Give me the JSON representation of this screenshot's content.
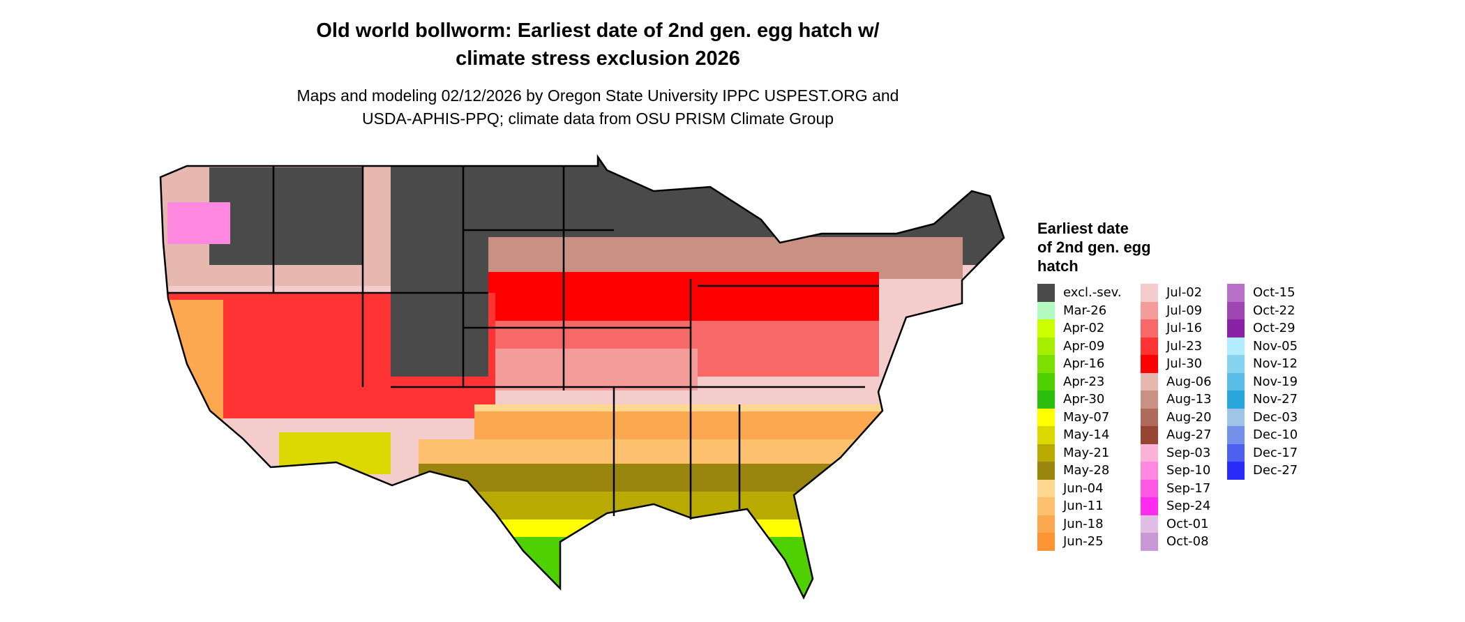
{
  "title_line1": "Old world bollworm: Earliest date of 2nd gen. egg hatch w/",
  "title_line2": "climate stress exclusion 2026",
  "subtitle_line1": "Maps and modeling 02/12/2026 by Oregon State University IPPC USPEST.ORG and",
  "subtitle_line2": "USDA-APHIS-PPQ; climate data from OSU PRISM Climate Group",
  "chart_data": {
    "type": "heatmap",
    "title": "Old world bollworm: Earliest date of 2nd gen. egg hatch w/ climate stress exclusion 2026",
    "region": "Contiguous United States",
    "legend_title": "Earliest date of 2nd gen. egg hatch",
    "legend_placement": "right",
    "legend": [
      {
        "label": "excl.-sev.",
        "color": "#4a4a4a"
      },
      {
        "label": "Mar-26",
        "color": "#b3fbc0"
      },
      {
        "label": "Apr-02",
        "color": "#ccff00"
      },
      {
        "label": "Apr-09",
        "color": "#a6ef00"
      },
      {
        "label": "Apr-16",
        "color": "#7ae000"
      },
      {
        "label": "Apr-23",
        "color": "#4fd000"
      },
      {
        "label": "Apr-30",
        "color": "#2dbf0e"
      },
      {
        "label": "May-07",
        "color": "#ffff00"
      },
      {
        "label": "May-14",
        "color": "#dcd800"
      },
      {
        "label": "May-21",
        "color": "#b8aa00"
      },
      {
        "label": "May-28",
        "color": "#9a850e"
      },
      {
        "label": "Jun-04",
        "color": "#fdd88e"
      },
      {
        "label": "Jun-11",
        "color": "#fdc06e"
      },
      {
        "label": "Jun-18",
        "color": "#fca851"
      },
      {
        "label": "Jun-25",
        "color": "#fc9433"
      },
      {
        "label": "Jul-02",
        "color": "#f4cccc"
      },
      {
        "label": "Jul-09",
        "color": "#f49c9a"
      },
      {
        "label": "Jul-16",
        "color": "#f76868"
      },
      {
        "label": "Jul-23",
        "color": "#fe3434"
      },
      {
        "label": "Jul-30",
        "color": "#ff0000"
      },
      {
        "label": "Aug-06",
        "color": "#e6b8b0"
      },
      {
        "label": "Aug-13",
        "color": "#c99084"
      },
      {
        "label": "Aug-20",
        "color": "#b06a5c"
      },
      {
        "label": "Aug-27",
        "color": "#984432"
      },
      {
        "label": "Sep-03",
        "color": "#fbb3da"
      },
      {
        "label": "Sep-10",
        "color": "#ff88e0"
      },
      {
        "label": "Sep-17",
        "color": "#fe58e4"
      },
      {
        "label": "Sep-24",
        "color": "#ff2bf0"
      },
      {
        "label": "Oct-01",
        "color": "#e0bee6"
      },
      {
        "label": "Oct-08",
        "color": "#c996d6"
      },
      {
        "label": "Oct-15",
        "color": "#b870c8"
      },
      {
        "label": "Oct-22",
        "color": "#a046b4"
      },
      {
        "label": "Oct-29",
        "color": "#8a22a6"
      },
      {
        "label": "Nov-05",
        "color": "#b2ecfe"
      },
      {
        "label": "Nov-12",
        "color": "#86d4f0"
      },
      {
        "label": "Nov-19",
        "color": "#58bce6"
      },
      {
        "label": "Nov-27",
        "color": "#2aa6dc"
      },
      {
        "label": "Dec-03",
        "color": "#a0c4e8"
      },
      {
        "label": "Dec-10",
        "color": "#7490e8"
      },
      {
        "label": "Dec-17",
        "color": "#4e60f0"
      },
      {
        "label": "Dec-27",
        "color": "#2a2cfa"
      }
    ]
  }
}
